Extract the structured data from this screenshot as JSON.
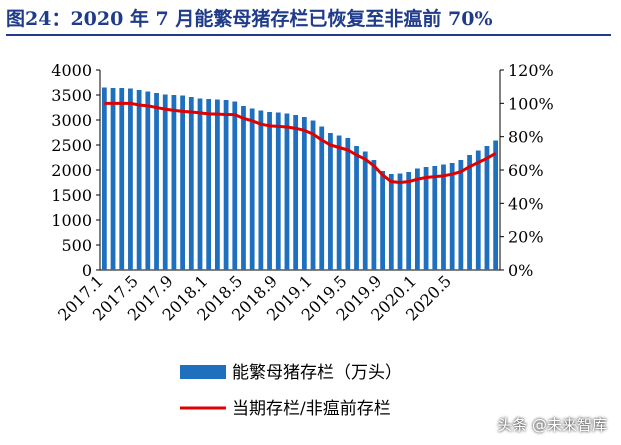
{
  "title": "图24：2020 年 7 月能繁母猪存栏已恢复至非瘟前 70%",
  "watermark": "头条 @未来智库",
  "chart_data": {
    "type": "bar",
    "x_tick_labels": [
      "2017.1",
      "2017.5",
      "2017.9",
      "2018.1",
      "2018.5",
      "2018.9",
      "2019.1",
      "2019.5",
      "2019.9",
      "2020.1",
      "2020.5"
    ],
    "left_axis": {
      "ticks": [
        "0",
        "500",
        "1000",
        "1500",
        "2000",
        "2500",
        "3000",
        "3500",
        "4000"
      ],
      "ylim": [
        0,
        4000
      ]
    },
    "right_axis": {
      "ticks": [
        "0%",
        "20%",
        "40%",
        "60%",
        "80%",
        "100%",
        "120%"
      ],
      "ylim": [
        0,
        1.2
      ]
    },
    "series": [
      {
        "name": "能繁母猪存栏（万头）",
        "type": "bar",
        "axis": "left",
        "color": "#1f6fbf",
        "values": [
          3650,
          3640,
          3640,
          3630,
          3600,
          3570,
          3540,
          3510,
          3500,
          3490,
          3460,
          3430,
          3420,
          3410,
          3400,
          3370,
          3280,
          3230,
          3190,
          3160,
          3150,
          3130,
          3100,
          3060,
          2990,
          2870,
          2740,
          2690,
          2640,
          2480,
          2370,
          2200,
          1980,
          1920,
          1930,
          1960,
          2030,
          2060,
          2080,
          2110,
          2140,
          2200,
          2300,
          2390,
          2480,
          2590
        ]
      },
      {
        "name": "当期存栏/非瘟前存栏",
        "type": "line",
        "axis": "right",
        "color": "#e00000",
        "values": [
          1.0,
          1.0,
          1.0,
          1.0,
          0.99,
          0.985,
          0.975,
          0.965,
          0.958,
          0.952,
          0.948,
          0.943,
          0.937,
          0.935,
          0.933,
          0.932,
          0.91,
          0.895,
          0.875,
          0.865,
          0.862,
          0.858,
          0.85,
          0.838,
          0.815,
          0.78,
          0.75,
          0.735,
          0.72,
          0.69,
          0.665,
          0.625,
          0.57,
          0.53,
          0.525,
          0.53,
          0.545,
          0.555,
          0.56,
          0.565,
          0.575,
          0.59,
          0.62,
          0.645,
          0.67,
          0.7
        ]
      }
    ],
    "grid": false,
    "legend_position": "bottom"
  }
}
